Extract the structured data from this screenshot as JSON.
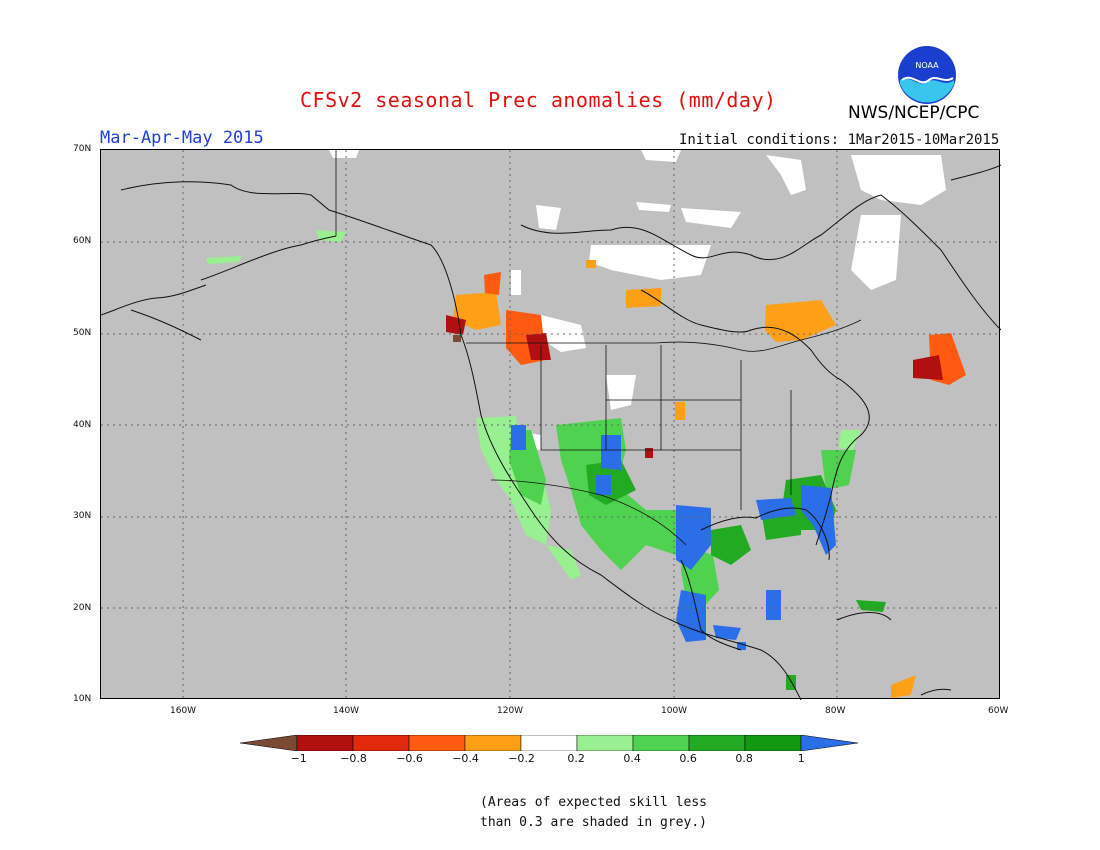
{
  "title": "CFSv2 seasonal Prec anomalies (mm/day)",
  "period": "Mar-Apr-May 2015",
  "initial_conditions": "Initial conditions: 1Mar2015-10Mar2015",
  "agency": "NWS/NCEP/CPC",
  "logo_text": "NOAA",
  "map": {
    "lat_labels": [
      "70N",
      "60N",
      "50N",
      "40N",
      "30N",
      "20N",
      "10N"
    ],
    "lon_labels": [
      "160W",
      "140W",
      "120W",
      "100W",
      "80W",
      "60W"
    ],
    "masked_color": "#c0c0c0"
  },
  "legend": {
    "labels": [
      "−1",
      "−0.8",
      "−0.6",
      "−0.4",
      "−0.2",
      "0.2",
      "0.4",
      "0.6",
      "0.8",
      "1"
    ],
    "colors": [
      "#7a4a33",
      "#b01010",
      "#e02a0a",
      "#ff5a10",
      "#ff9f15",
      "#ffffff",
      "#98f090",
      "#4fd24f",
      "#22aa22",
      "#119911",
      "#2a6ee8"
    ]
  },
  "note_line1": "(Areas of expected skill less",
  "note_line2": "than 0.3 are shaded in grey.)"
}
